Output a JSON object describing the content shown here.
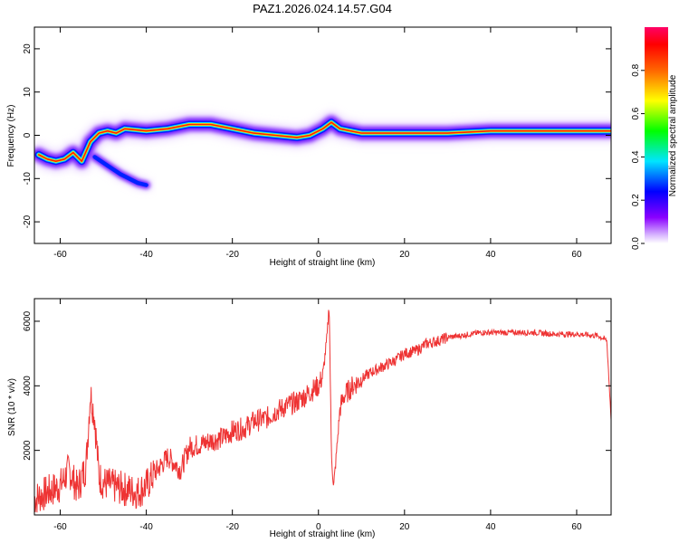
{
  "figure_title": "PAZ1.2026.024.14.57.G04",
  "chart_data": [
    {
      "type": "heatmap",
      "xlabel": "Height of straight line (km)",
      "ylabel": "Frequency (Hz)",
      "xlim": [
        -66,
        68
      ],
      "ylim": [
        -25,
        25
      ],
      "xticks": [
        -60,
        -40,
        -20,
        0,
        20,
        40,
        60
      ],
      "yticks": [
        -20,
        -10,
        0,
        10,
        20
      ],
      "grid": false,
      "colorbar": {
        "label": "Normalized spectral amplitude",
        "range": [
          0,
          1
        ],
        "ticks": [
          "0.0",
          "0.2",
          "0.4",
          "0.6",
          "0.8"
        ],
        "colormap": "rainbow (white-violet-blue-cyan-green-yellow-red-magenta)"
      },
      "ridge": {
        "x": [
          -65,
          -63,
          -61,
          -59,
          -57,
          -55,
          -53,
          -51,
          -49,
          -47,
          -45,
          -40,
          -35,
          -30,
          -25,
          -20,
          -15,
          -10,
          -5,
          -2,
          1,
          3,
          5,
          10,
          20,
          30,
          40,
          50,
          60,
          68
        ],
        "freq": [
          -4.5,
          -5.5,
          -6,
          -5.5,
          -4,
          -6,
          -1.5,
          0.5,
          1,
          0.5,
          1.5,
          1,
          1.5,
          2.5,
          2.5,
          1.5,
          0.5,
          0,
          -0.5,
          0,
          1.5,
          3,
          1.5,
          0.5,
          0.5,
          0.5,
          1,
          1,
          1,
          1
        ]
      },
      "secondary_branch": {
        "x": [
          -52,
          -49,
          -46,
          -42,
          -40
        ],
        "freq": [
          -5,
          -7,
          -9,
          -11,
          -11.5
        ]
      }
    },
    {
      "type": "line",
      "xlabel": "Height of straight line (km)",
      "ylabel": "SNR (10 * v/v)",
      "xlim": [
        -66,
        68
      ],
      "ylim": [
        0,
        6700
      ],
      "xticks": [
        -60,
        -40,
        -20,
        0,
        20,
        40,
        60
      ],
      "yticks": [
        2000,
        4000,
        6000
      ],
      "grid": false,
      "color": "#ee3333",
      "x": [
        -66,
        -60,
        -58,
        -56,
        -54,
        -53,
        -52,
        -51,
        -50,
        -48,
        -45,
        -42,
        -40,
        -38,
        -35,
        -32,
        -30,
        -27,
        -25,
        -22,
        -20,
        -17,
        -15,
        -12,
        -10,
        -7,
        -5,
        -2,
        0,
        1,
        2,
        2.5,
        3,
        3.5,
        4,
        5,
        6,
        8,
        10,
        12,
        15,
        18,
        20,
        23,
        25,
        28,
        30,
        33,
        35,
        38,
        40,
        45,
        50,
        55,
        60,
        65,
        67,
        68
      ],
      "values": [
        500,
        900,
        1400,
        800,
        1500,
        3800,
        3000,
        1200,
        1000,
        900,
        800,
        700,
        900,
        1300,
        1800,
        1400,
        2100,
        2200,
        2300,
        2400,
        2600,
        2700,
        2900,
        3000,
        3200,
        3400,
        3500,
        3800,
        4000,
        4300,
        5500,
        6600,
        2000,
        800,
        1600,
        3300,
        3700,
        4000,
        4200,
        4400,
        4600,
        4800,
        5000,
        5100,
        5300,
        5400,
        5500,
        5550,
        5600,
        5650,
        5650,
        5650,
        5650,
        5600,
        5600,
        5550,
        5400,
        3000
      ]
    }
  ]
}
